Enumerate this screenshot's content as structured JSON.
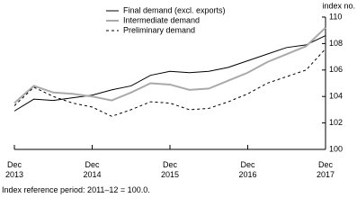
{
  "chart_data": {
    "type": "line",
    "y_label": "index no.",
    "footnote": "Index reference period: 2011–12 = 100.0.",
    "categories": [
      "Dec 2013",
      null,
      null,
      null,
      "Dec 2014",
      null,
      null,
      null,
      "Dec 2015",
      null,
      null,
      null,
      "Dec 2016",
      null,
      null,
      null,
      "Dec 2017"
    ],
    "series": [
      {
        "name": "Final demand (excl. exports)",
        "color": "#000000",
        "style": "solid",
        "values": [
          102.9,
          103.8,
          103.7,
          103.9,
          104.1,
          104.5,
          104.8,
          105.6,
          105.9,
          105.8,
          105.9,
          106.2,
          106.7,
          107.2,
          107.7,
          107.9,
          108.6
        ]
      },
      {
        "name": "Intermediate demand",
        "color": "#aaaaaa",
        "style": "thick",
        "values": [
          103.5,
          104.8,
          104.3,
          104.2,
          104.0,
          103.7,
          104.3,
          105.0,
          104.9,
          104.5,
          104.6,
          105.2,
          105.8,
          106.6,
          107.2,
          107.8,
          109.2
        ]
      },
      {
        "name": "Preliminary demand",
        "color": "#000000",
        "style": "dashed",
        "values": [
          103.3,
          104.7,
          104.0,
          103.5,
          103.2,
          102.5,
          103.0,
          103.6,
          103.5,
          103.0,
          103.1,
          103.6,
          104.2,
          105.0,
          105.5,
          106.0,
          107.6
        ]
      }
    ],
    "ylim": [
      100,
      110
    ],
    "yticks": [
      100,
      102,
      104,
      106,
      108,
      110
    ],
    "grid": false
  }
}
